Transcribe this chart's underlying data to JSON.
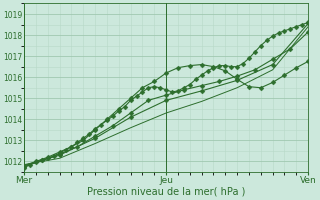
{
  "xlabel": "Pression niveau de la mer( hPa )",
  "bg_color": "#cce8dc",
  "grid_color_major": "#a0c8b0",
  "grid_color_minor": "#b8d8c8",
  "line_color": "#2d6e2d",
  "xlim": [
    0,
    48
  ],
  "ylim": [
    1011.5,
    1019.5
  ],
  "yticks": [
    1012,
    1013,
    1014,
    1015,
    1016,
    1017,
    1018,
    1019
  ],
  "xtick_positions": [
    0,
    24,
    48
  ],
  "xtick_labels": [
    "Mer",
    "Jeu",
    "Ven"
  ],
  "vline_positions": [
    0,
    24,
    48
  ],
  "series": [
    {
      "x": [
        0,
        1,
        2,
        3,
        4,
        5,
        6,
        7,
        8,
        9,
        10,
        11,
        12,
        13,
        14,
        15,
        16,
        17,
        18,
        19,
        20,
        21,
        22,
        23,
        24,
        25,
        26,
        27,
        28,
        29,
        30,
        31,
        32,
        33,
        34,
        35,
        36,
        37,
        38,
        39,
        40,
        41,
        42,
        43,
        44,
        45,
        46,
        47,
        48
      ],
      "y": [
        1011.7,
        1011.85,
        1011.95,
        1012.05,
        1012.15,
        1012.25,
        1012.4,
        1012.55,
        1012.7,
        1012.9,
        1013.1,
        1013.3,
        1013.55,
        1013.75,
        1013.95,
        1014.15,
        1014.4,
        1014.6,
        1014.9,
        1015.1,
        1015.3,
        1015.5,
        1015.55,
        1015.5,
        1015.4,
        1015.3,
        1015.35,
        1015.5,
        1015.65,
        1015.9,
        1016.1,
        1016.3,
        1016.45,
        1016.55,
        1016.55,
        1016.5,
        1016.5,
        1016.65,
        1016.9,
        1017.2,
        1017.5,
        1017.75,
        1017.95,
        1018.1,
        1018.2,
        1018.3,
        1018.4,
        1018.5,
        1018.6
      ],
      "marker": "D",
      "marker_size": 2.5,
      "linewidth": 0.8
    },
    {
      "x": [
        0,
        2,
        4,
        6,
        8,
        10,
        12,
        14,
        16,
        18,
        20,
        22,
        24,
        26,
        28,
        30,
        32,
        34,
        36,
        38,
        40,
        42,
        44,
        46,
        48
      ],
      "y": [
        1011.8,
        1012.0,
        1012.2,
        1012.45,
        1012.7,
        1013.0,
        1013.5,
        1014.0,
        1014.5,
        1015.0,
        1015.5,
        1015.8,
        1016.2,
        1016.45,
        1016.55,
        1016.6,
        1016.5,
        1016.3,
        1015.9,
        1015.55,
        1015.5,
        1015.75,
        1016.1,
        1016.45,
        1016.75
      ],
      "marker": "D",
      "marker_size": 2.5,
      "linewidth": 0.8
    },
    {
      "x": [
        0,
        3,
        6,
        9,
        12,
        15,
        18,
        21,
        24,
        27,
        30,
        33,
        36,
        39,
        42,
        45,
        48
      ],
      "y": [
        1011.75,
        1012.05,
        1012.35,
        1012.7,
        1013.2,
        1013.7,
        1014.3,
        1014.9,
        1015.15,
        1015.4,
        1015.6,
        1015.8,
        1016.05,
        1016.35,
        1016.85,
        1017.35,
        1018.15
      ],
      "marker": "D",
      "marker_size": 2.5,
      "linewidth": 0.8
    },
    {
      "x": [
        0,
        6,
        12,
        18,
        24,
        30,
        36,
        42,
        48
      ],
      "y": [
        1011.8,
        1012.3,
        1013.1,
        1014.1,
        1014.9,
        1015.35,
        1015.85,
        1016.6,
        1018.55
      ],
      "marker": "D",
      "marker_size": 2.5,
      "linewidth": 0.8
    },
    {
      "x": [
        0,
        6,
        12,
        18,
        24,
        30,
        36,
        42,
        48
      ],
      "y": [
        1011.85,
        1012.15,
        1012.85,
        1013.6,
        1014.3,
        1014.85,
        1015.5,
        1016.35,
        1018.4
      ],
      "marker": null,
      "marker_size": 0,
      "linewidth": 0.7
    }
  ]
}
